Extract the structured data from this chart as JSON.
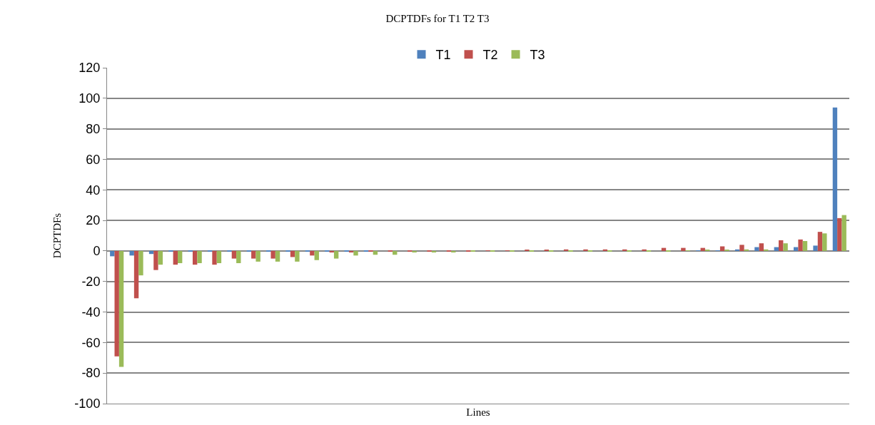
{
  "chart_data": {
    "type": "bar",
    "title": "DCPTDFs for T1 T2 T3",
    "xlabel": "Lines",
    "ylabel": "DCPTDFs",
    "categories": [
      null,
      null,
      null,
      null,
      null,
      null,
      null,
      null,
      null,
      null,
      null,
      null,
      null,
      null,
      null,
      null,
      null,
      null,
      null,
      null,
      null,
      null,
      null,
      null,
      null,
      null,
      null,
      null,
      null,
      null,
      null,
      null,
      null,
      null,
      null,
      null,
      null,
      null
    ],
    "series": [
      {
        "name": "T1",
        "color": "#4f81bd",
        "values": [
          -3.5,
          -3,
          -2,
          -0.5,
          -0.5,
          -0.5,
          -0.5,
          -0.3,
          -0.3,
          -0.2,
          -0.2,
          -0.1,
          -0.1,
          -0.1,
          0,
          0,
          0,
          0,
          0,
          0,
          0,
          0,
          0,
          0,
          0,
          0,
          0,
          0,
          0,
          0,
          0.2,
          0.3,
          1,
          2.5,
          2.5,
          2.5,
          3.5,
          94
        ]
      },
      {
        "name": "T2",
        "color": "#c0504d",
        "values": [
          -69,
          -31,
          -12.5,
          -9,
          -9,
          -9,
          -5,
          -5,
          -5,
          -4,
          -3,
          -1,
          -1,
          -0.5,
          -0.5,
          -0.5,
          -0.3,
          -0.3,
          -0.2,
          0.2,
          0.3,
          0.5,
          0.8,
          1,
          1,
          1,
          1,
          1,
          2,
          2,
          2,
          3,
          4,
          5,
          7,
          7.5,
          12.5,
          21.5
        ]
      },
      {
        "name": "T3",
        "color": "#9bbb59",
        "values": [
          -76,
          -16,
          -9,
          -8,
          -8,
          -8,
          -8,
          -7,
          -7,
          -7,
          -6,
          -5,
          -3,
          -2.5,
          -2.5,
          -1,
          -1,
          -1,
          -0.5,
          -0.5,
          -0.5,
          -0.3,
          -0.3,
          -0.2,
          -0.2,
          -0.2,
          -0.2,
          -0.3,
          -0.3,
          0.3,
          0.5,
          0.5,
          1,
          1,
          5,
          6.5,
          11.5,
          23.5
        ]
      }
    ],
    "ylim": [
      -100,
      120
    ],
    "yticks": [
      -100,
      -80,
      -60,
      -40,
      -20,
      0,
      20,
      40,
      60,
      80,
      100,
      120
    ],
    "grid": "y",
    "legend": "top"
  }
}
